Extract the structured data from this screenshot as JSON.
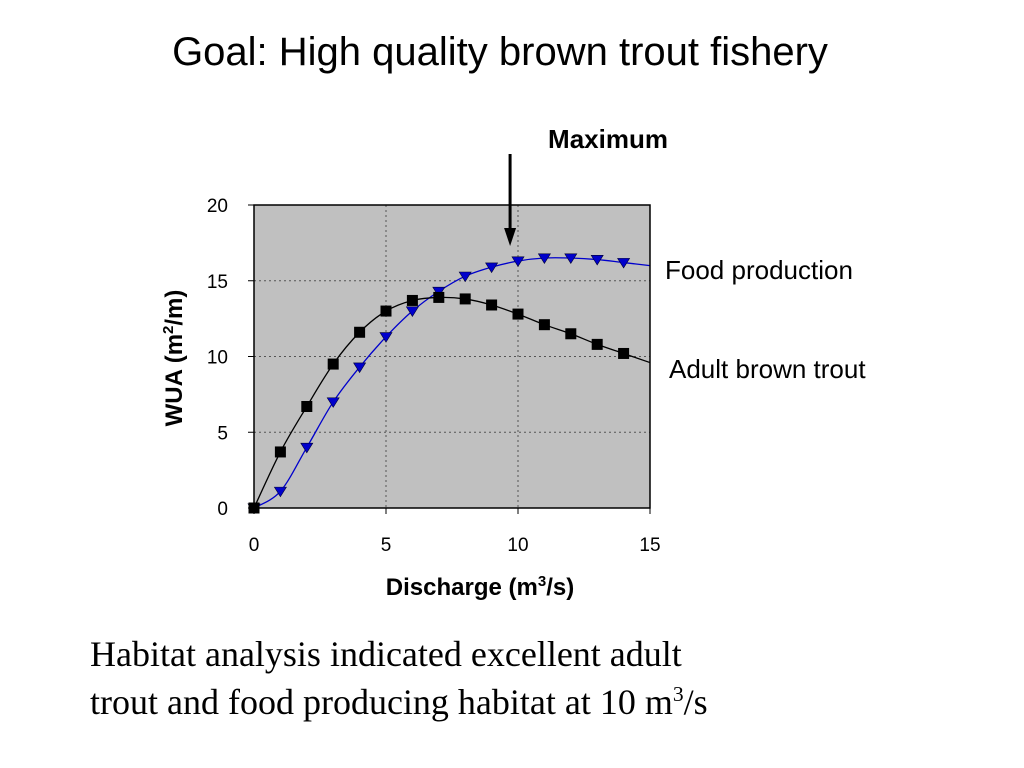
{
  "slide": {
    "title": "Goal: High quality brown trout fishery",
    "caption_line1": "Habitat analysis indicated excellent adult",
    "caption_line2_pre": "trout and food producing habitat at 10 m",
    "caption_line2_sup": "3",
    "caption_line2_post": "/s"
  },
  "annotation": {
    "label": "Maximum",
    "arrow_x": 9.7
  },
  "chart_data": {
    "type": "line",
    "xlabel": {
      "pre": "Discharge (m",
      "sup": "3",
      "post": "/s)"
    },
    "ylabel": {
      "pre": "WUA (m",
      "sup": "2",
      "post": "/m)"
    },
    "xlim": [
      0,
      15
    ],
    "ylim": [
      0,
      20
    ],
    "xticks": [
      0,
      5,
      10,
      15
    ],
    "yticks": [
      0,
      5,
      10,
      15,
      20
    ],
    "grid": true,
    "plot_background": "#c0c0c0",
    "series": [
      {
        "name": "Food production",
        "color": "#0000cc",
        "marker": "triangle-down",
        "x": [
          0,
          1,
          2,
          3,
          4,
          5,
          6,
          7,
          8,
          9,
          10,
          11,
          12,
          13,
          14
        ],
        "y": [
          0,
          1.1,
          4.0,
          7.0,
          9.3,
          11.3,
          13.0,
          14.3,
          15.3,
          15.9,
          16.3,
          16.5,
          16.5,
          16.4,
          16.2
        ]
      },
      {
        "name": "Adult brown trout",
        "color": "#000000",
        "marker": "square",
        "x": [
          0,
          1,
          2,
          3,
          4,
          5,
          6,
          7,
          8,
          9,
          10,
          11,
          12,
          13,
          14
        ],
        "y": [
          0,
          3.7,
          6.7,
          9.5,
          11.6,
          13.0,
          13.7,
          13.9,
          13.8,
          13.4,
          12.8,
          12.1,
          11.5,
          10.8,
          10.2
        ]
      }
    ]
  }
}
